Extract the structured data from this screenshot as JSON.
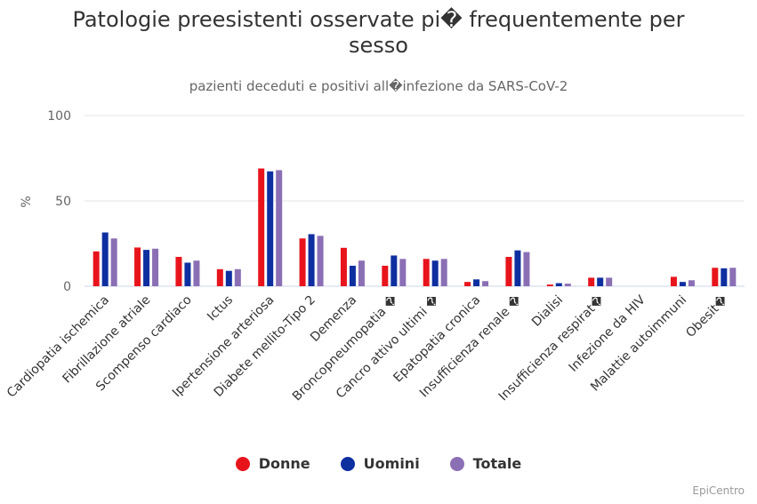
{
  "chart_data": {
    "type": "bar",
    "title": [
      "Patologie preesistenti osservate pi� frequentemente per",
      "sesso"
    ],
    "subtitle": "pazienti deceduti e positivi all�infezione da SARS-CoV-2",
    "ylabel": "%",
    "ylim": [
      0,
      100
    ],
    "yticks": [
      0,
      50,
      100
    ],
    "grid": true,
    "legend_position": "bottom",
    "categories": [
      "Cardiopatia ischemica",
      "Fibrillazione atriale",
      "Scompenso cardiaco",
      "Ictus",
      "Ipertensione arteriosa",
      "Diabete mellito-Tipo 2",
      "Demenza",
      "Broncopneumopatia �",
      "Cancro attivo ultimi �",
      "Epatopatia cronica",
      "Insufficienza renale �",
      "Dialisi",
      "Insufficienza respirat�",
      "Infezione da HIV",
      "Malattie autoimmuni",
      "Obesit�"
    ],
    "series": [
      {
        "name": "Donne",
        "color": "#e8141c",
        "values": [
          20.4,
          22.7,
          17.2,
          10.0,
          69.0,
          28.0,
          22.5,
          12.0,
          16.0,
          2.5,
          17.2,
          1.0,
          5.0,
          0,
          5.5,
          10.8
        ]
      },
      {
        "name": "Uomini",
        "color": "#0e2fa0",
        "values": [
          31.5,
          21.3,
          13.8,
          9.0,
          67.3,
          30.5,
          12.0,
          18.0,
          15.0,
          4.0,
          21.0,
          1.8,
          5.0,
          0,
          2.5,
          10.5
        ]
      },
      {
        "name": "Totale",
        "color": "#8b6fb5",
        "values": [
          28.0,
          22.0,
          15.0,
          10.0,
          68.0,
          29.5,
          15.0,
          16.0,
          16.0,
          3.0,
          20.0,
          1.5,
          5.0,
          0,
          3.5,
          10.8
        ]
      }
    ]
  },
  "credits": "EpiCentro"
}
